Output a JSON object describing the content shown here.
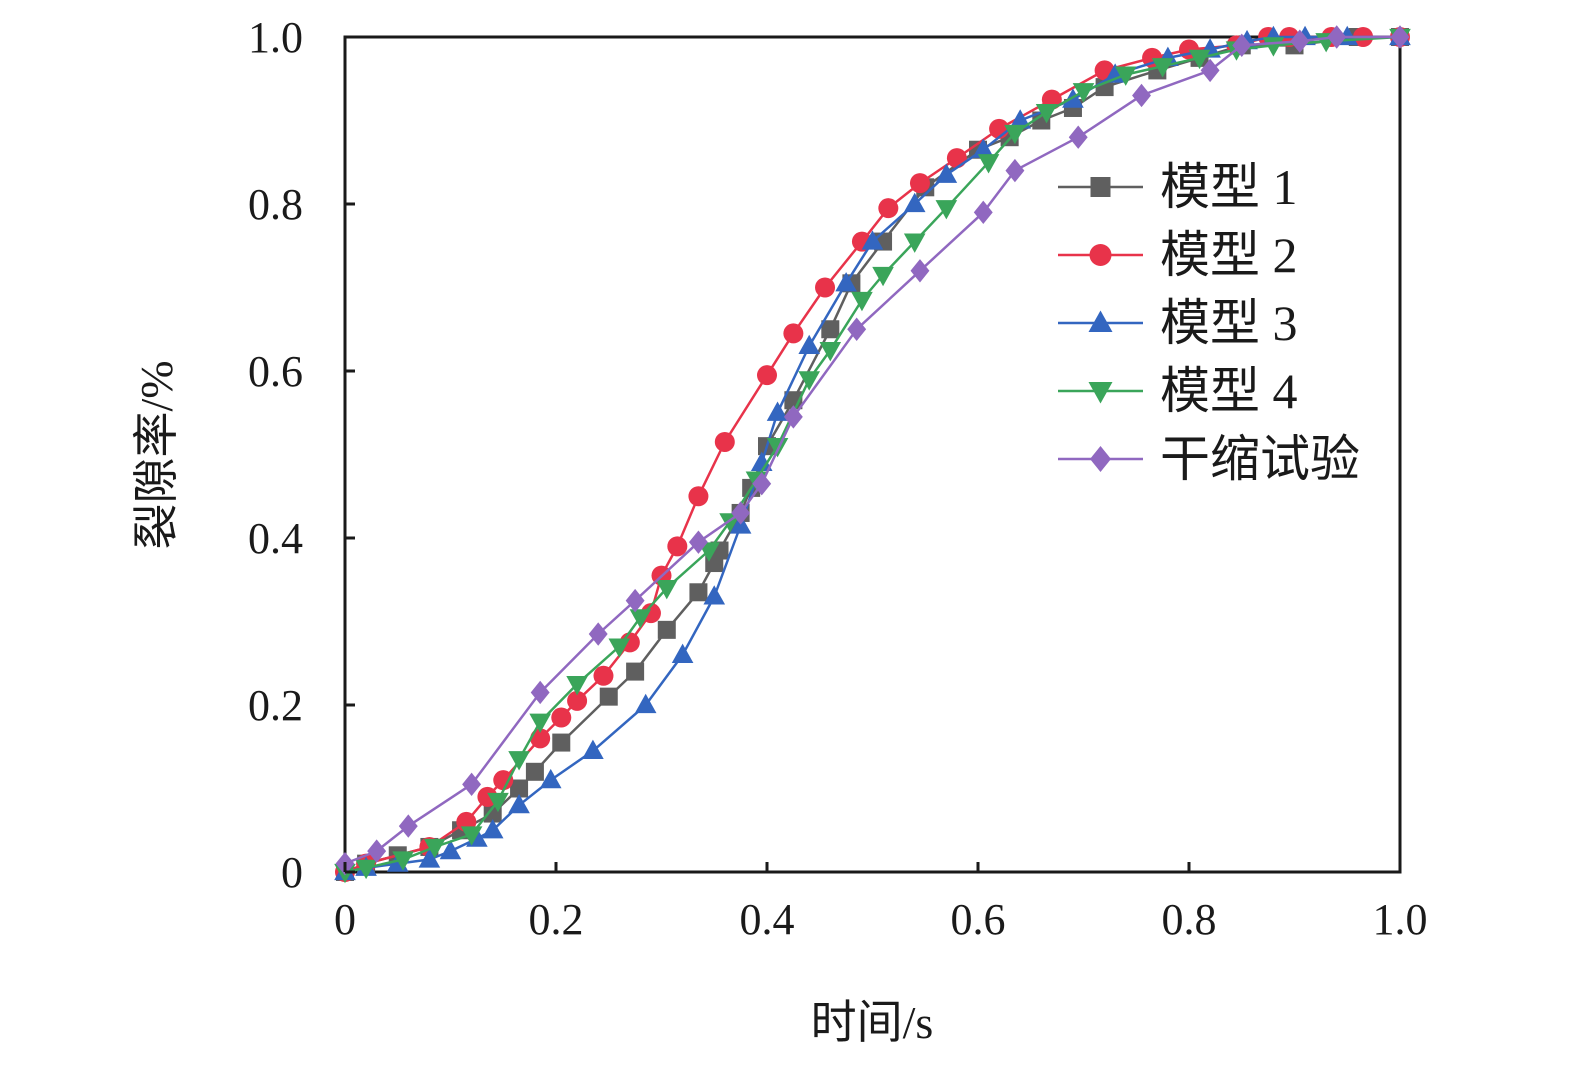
{
  "chart_data": {
    "type": "line",
    "title": "",
    "xlabel": "时间/s",
    "ylabel": "裂隙率/%",
    "xlim": [
      0,
      1.0
    ],
    "ylim": [
      0,
      1.0
    ],
    "x_ticks": [
      "0",
      "0.2",
      "0.4",
      "0.6",
      "0.8",
      "1.0"
    ],
    "y_ticks": [
      "0",
      "0.2",
      "0.4",
      "0.6",
      "0.8",
      "1.0"
    ],
    "grid": false,
    "legend_position": "right",
    "series": [
      {
        "name": "模型 1",
        "color": "#5f5f5f",
        "marker": "square",
        "points": [
          [
            0,
            0
          ],
          [
            0.02,
            0.01
          ],
          [
            0.05,
            0.02
          ],
          [
            0.08,
            0.03
          ],
          [
            0.11,
            0.05
          ],
          [
            0.14,
            0.07
          ],
          [
            0.165,
            0.1
          ],
          [
            0.18,
            0.12
          ],
          [
            0.205,
            0.155
          ],
          [
            0.25,
            0.21
          ],
          [
            0.275,
            0.24
          ],
          [
            0.305,
            0.29
          ],
          [
            0.335,
            0.335
          ],
          [
            0.35,
            0.37
          ],
          [
            0.355,
            0.385
          ],
          [
            0.375,
            0.43
          ],
          [
            0.385,
            0.46
          ],
          [
            0.4,
            0.51
          ],
          [
            0.425,
            0.565
          ],
          [
            0.46,
            0.65
          ],
          [
            0.48,
            0.705
          ],
          [
            0.51,
            0.755
          ],
          [
            0.55,
            0.82
          ],
          [
            0.6,
            0.865
          ],
          [
            0.63,
            0.88
          ],
          [
            0.66,
            0.9
          ],
          [
            0.69,
            0.915
          ],
          [
            0.72,
            0.94
          ],
          [
            0.77,
            0.96
          ],
          [
            0.81,
            0.975
          ],
          [
            0.85,
            0.99
          ],
          [
            0.9,
            0.99
          ],
          [
            0.96,
            1.0
          ],
          [
            1.0,
            1.0
          ]
        ]
      },
      {
        "name": "模型 2",
        "color": "#e8334a",
        "marker": "circle",
        "points": [
          [
            0,
            0
          ],
          [
            0.02,
            0.01
          ],
          [
            0.08,
            0.03
          ],
          [
            0.115,
            0.06
          ],
          [
            0.135,
            0.09
          ],
          [
            0.15,
            0.11
          ],
          [
            0.185,
            0.16
          ],
          [
            0.205,
            0.185
          ],
          [
            0.22,
            0.205
          ],
          [
            0.245,
            0.235
          ],
          [
            0.27,
            0.275
          ],
          [
            0.29,
            0.31
          ],
          [
            0.3,
            0.355
          ],
          [
            0.315,
            0.39
          ],
          [
            0.335,
            0.45
          ],
          [
            0.36,
            0.515
          ],
          [
            0.4,
            0.595
          ],
          [
            0.425,
            0.645
          ],
          [
            0.455,
            0.7
          ],
          [
            0.49,
            0.755
          ],
          [
            0.515,
            0.795
          ],
          [
            0.545,
            0.825
          ],
          [
            0.58,
            0.855
          ],
          [
            0.62,
            0.89
          ],
          [
            0.67,
            0.925
          ],
          [
            0.72,
            0.96
          ],
          [
            0.765,
            0.975
          ],
          [
            0.8,
            0.985
          ],
          [
            0.845,
            0.99
          ],
          [
            0.875,
            1.0
          ],
          [
            0.895,
            1.0
          ],
          [
            0.935,
            1.0
          ],
          [
            0.965,
            1.0
          ],
          [
            1.0,
            1.0
          ]
        ]
      },
      {
        "name": "模型 3",
        "color": "#3366c0",
        "marker": "triangle-up",
        "points": [
          [
            0,
            0
          ],
          [
            0.02,
            0.005
          ],
          [
            0.05,
            0.01
          ],
          [
            0.08,
            0.015
          ],
          [
            0.1,
            0.025
          ],
          [
            0.125,
            0.04
          ],
          [
            0.14,
            0.05
          ],
          [
            0.165,
            0.08
          ],
          [
            0.195,
            0.11
          ],
          [
            0.235,
            0.145
          ],
          [
            0.285,
            0.2
          ],
          [
            0.32,
            0.26
          ],
          [
            0.35,
            0.33
          ],
          [
            0.375,
            0.415
          ],
          [
            0.395,
            0.49
          ],
          [
            0.41,
            0.55
          ],
          [
            0.44,
            0.63
          ],
          [
            0.475,
            0.705
          ],
          [
            0.5,
            0.755
          ],
          [
            0.54,
            0.8
          ],
          [
            0.57,
            0.835
          ],
          [
            0.605,
            0.865
          ],
          [
            0.64,
            0.9
          ],
          [
            0.69,
            0.925
          ],
          [
            0.73,
            0.955
          ],
          [
            0.78,
            0.975
          ],
          [
            0.82,
            0.985
          ],
          [
            0.855,
            0.995
          ],
          [
            0.88,
            1.0
          ],
          [
            0.91,
            1.0
          ],
          [
            0.95,
            1.0
          ],
          [
            1.0,
            1.0
          ]
        ]
      },
      {
        "name": "模型 4",
        "color": "#3aa55a",
        "marker": "triangle-down",
        "points": [
          [
            0,
            0
          ],
          [
            0.02,
            0.005
          ],
          [
            0.055,
            0.015
          ],
          [
            0.085,
            0.03
          ],
          [
            0.12,
            0.045
          ],
          [
            0.145,
            0.085
          ],
          [
            0.165,
            0.135
          ],
          [
            0.185,
            0.18
          ],
          [
            0.22,
            0.225
          ],
          [
            0.26,
            0.27
          ],
          [
            0.28,
            0.305
          ],
          [
            0.305,
            0.34
          ],
          [
            0.345,
            0.385
          ],
          [
            0.365,
            0.42
          ],
          [
            0.39,
            0.47
          ],
          [
            0.41,
            0.51
          ],
          [
            0.44,
            0.59
          ],
          [
            0.46,
            0.625
          ],
          [
            0.49,
            0.685
          ],
          [
            0.51,
            0.715
          ],
          [
            0.54,
            0.755
          ],
          [
            0.57,
            0.795
          ],
          [
            0.61,
            0.85
          ],
          [
            0.635,
            0.885
          ],
          [
            0.665,
            0.91
          ],
          [
            0.7,
            0.935
          ],
          [
            0.74,
            0.955
          ],
          [
            0.775,
            0.965
          ],
          [
            0.81,
            0.975
          ],
          [
            0.845,
            0.985
          ],
          [
            0.88,
            0.99
          ],
          [
            0.93,
            0.995
          ],
          [
            1.0,
            1.0
          ]
        ]
      },
      {
        "name": "干缩试验",
        "color": "#9068c0",
        "marker": "diamond",
        "points": [
          [
            0,
            0.01
          ],
          [
            0.03,
            0.025
          ],
          [
            0.06,
            0.055
          ],
          [
            0.12,
            0.105
          ],
          [
            0.185,
            0.215
          ],
          [
            0.24,
            0.285
          ],
          [
            0.275,
            0.325
          ],
          [
            0.335,
            0.395
          ],
          [
            0.375,
            0.43
          ],
          [
            0.395,
            0.465
          ],
          [
            0.425,
            0.545
          ],
          [
            0.485,
            0.65
          ],
          [
            0.545,
            0.72
          ],
          [
            0.605,
            0.79
          ],
          [
            0.635,
            0.84
          ],
          [
            0.695,
            0.88
          ],
          [
            0.755,
            0.93
          ],
          [
            0.82,
            0.96
          ],
          [
            0.85,
            0.99
          ],
          [
            0.905,
            0.995
          ],
          [
            0.94,
            1.0
          ],
          [
            1.0,
            1.0
          ]
        ]
      }
    ]
  }
}
